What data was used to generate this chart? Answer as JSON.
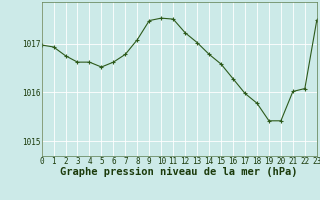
{
  "x": [
    0,
    1,
    2,
    3,
    4,
    5,
    6,
    7,
    8,
    9,
    10,
    11,
    12,
    13,
    14,
    15,
    16,
    17,
    18,
    19,
    20,
    21,
    22,
    23
  ],
  "y": [
    1016.97,
    1016.93,
    1016.75,
    1016.62,
    1016.62,
    1016.52,
    1016.62,
    1016.78,
    1017.08,
    1017.47,
    1017.52,
    1017.5,
    1017.22,
    1017.02,
    1016.78,
    1016.58,
    1016.28,
    1015.98,
    1015.78,
    1015.42,
    1015.42,
    1016.02,
    1016.08,
    1017.48
  ],
  "yticks": [
    1015,
    1016,
    1017
  ],
  "ylim": [
    1014.7,
    1017.85
  ],
  "xlim": [
    0,
    23
  ],
  "line_color": "#2d5a1b",
  "marker": "+",
  "marker_size": 3,
  "marker_linewidth": 0.8,
  "line_width": 0.8,
  "bg_color": "#cceae8",
  "grid_color": "#ffffff",
  "xlabel": "Graphe pression niveau de la mer (hPa)",
  "xlabel_color": "#1a3a0a",
  "tick_color": "#1a3a0a",
  "spine_color": "#5a7a4a",
  "label_fontsize": 7.5,
  "tick_fontsize": 5.5
}
